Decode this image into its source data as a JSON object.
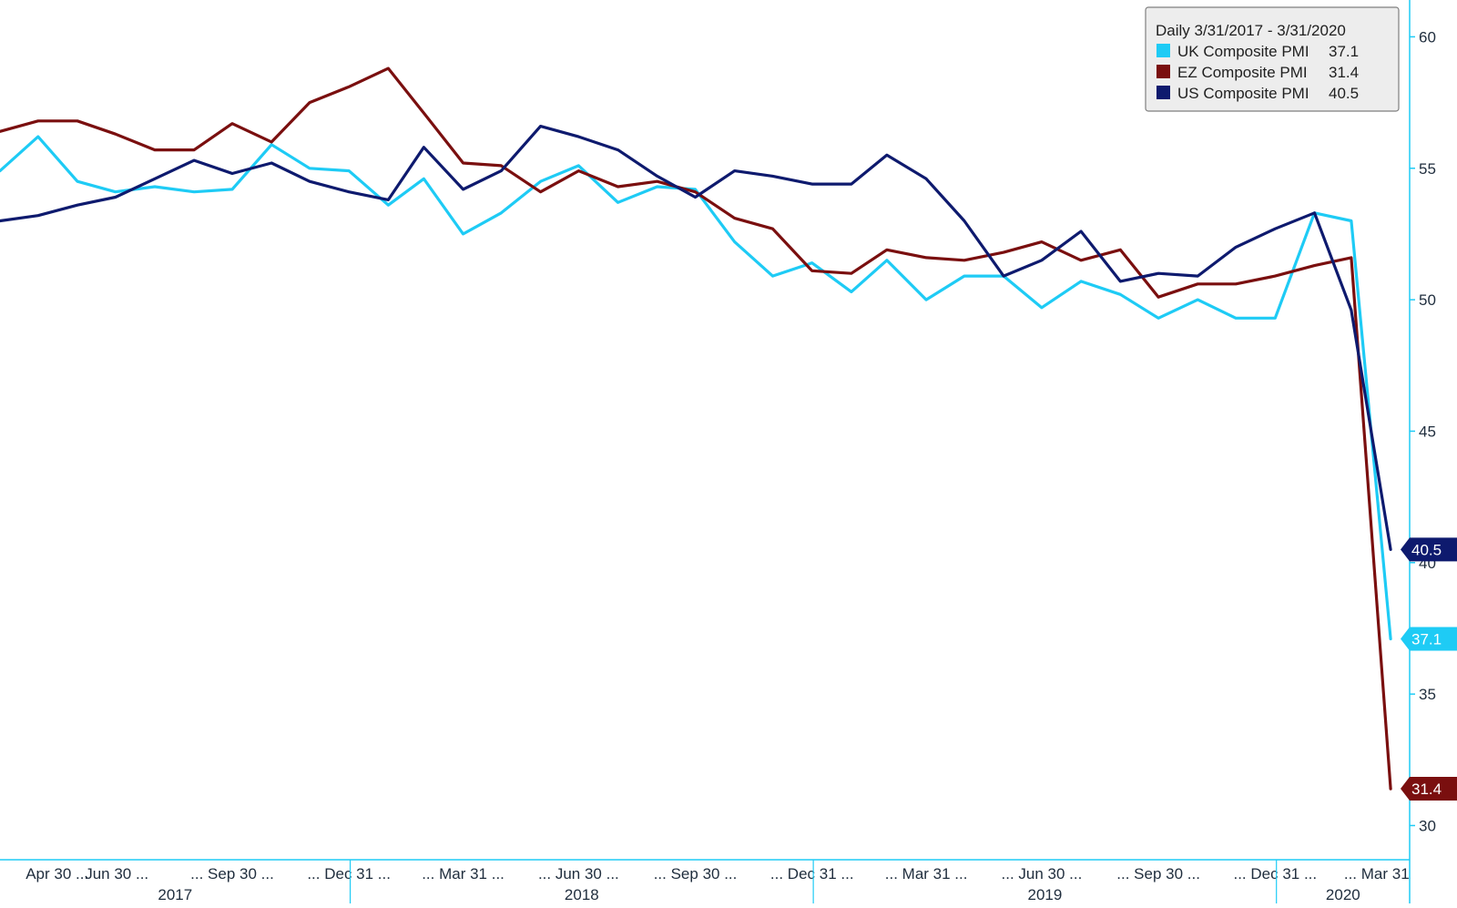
{
  "chart_data": {
    "type": "line",
    "legend": {
      "title": "Daily 3/31/2017 - 3/31/2020",
      "placement": "top-right",
      "items": [
        {
          "label": "UK Composite PMI",
          "value": "37.1",
          "color": "#1ecbf5"
        },
        {
          "label": "EZ Composite PMI",
          "value": "31.4",
          "color": "#7a0f0f"
        },
        {
          "label": "US Composite PMI",
          "value": "40.5",
          "color": "#0e1a6e"
        }
      ]
    },
    "y_axis": {
      "position": "right",
      "ylim": [
        28.7,
        61.4
      ],
      "ticks": [
        30,
        35,
        40,
        45,
        50,
        55,
        60
      ],
      "tick_labels": [
        "30",
        "35",
        "40",
        "45",
        "50",
        "55",
        "60"
      ]
    },
    "x_axis": {
      "xlim": [
        "2017-03-31",
        "2020-04-15"
      ],
      "tick_labels": [
        {
          "date": "2017-05-15",
          "text": "Apr 30 ..."
        },
        {
          "date": "2017-07-01",
          "text": "Jun 30 ..."
        },
        {
          "date": "2017-09-30",
          "text": "... Sep 30 ..."
        },
        {
          "date": "2017-12-31",
          "text": "... Dec 31 ..."
        },
        {
          "date": "2018-03-31",
          "text": "... Mar 31 ..."
        },
        {
          "date": "2018-06-30",
          "text": "... Jun 30 ..."
        },
        {
          "date": "2018-09-30",
          "text": "... Sep 30 ..."
        },
        {
          "date": "2018-12-31",
          "text": "... Dec 31 ..."
        },
        {
          "date": "2019-03-31",
          "text": "... Mar 31 ..."
        },
        {
          "date": "2019-06-30",
          "text": "... Jun 30 ..."
        },
        {
          "date": "2019-09-30",
          "text": "... Sep 30 ..."
        },
        {
          "date": "2019-12-31",
          "text": "... Dec 31 ..."
        },
        {
          "date": "2020-03-20",
          "text": "... Mar 31"
        }
      ],
      "years": [
        {
          "label": "2017",
          "start": "2017-03-31",
          "end": "2018-01-01"
        },
        {
          "label": "2018",
          "start": "2018-01-01",
          "end": "2019-01-01"
        },
        {
          "label": "2019",
          "start": "2019-01-01",
          "end": "2020-01-01"
        },
        {
          "label": "2020",
          "start": "2020-01-01",
          "end": "2020-04-15"
        }
      ]
    },
    "x": [
      "2017-03-31",
      "2017-04-30",
      "2017-05-31",
      "2017-06-30",
      "2017-07-31",
      "2017-08-31",
      "2017-09-30",
      "2017-10-31",
      "2017-11-30",
      "2017-12-31",
      "2018-01-31",
      "2018-02-28",
      "2018-03-31",
      "2018-04-30",
      "2018-05-31",
      "2018-06-30",
      "2018-07-31",
      "2018-08-31",
      "2018-09-30",
      "2018-10-31",
      "2018-11-30",
      "2018-12-31",
      "2019-01-31",
      "2019-02-28",
      "2019-03-31",
      "2019-04-30",
      "2019-05-31",
      "2019-06-30",
      "2019-07-31",
      "2019-08-31",
      "2019-09-30",
      "2019-10-31",
      "2019-11-30",
      "2019-12-31",
      "2020-01-31",
      "2020-02-29",
      "2020-03-31"
    ],
    "series": [
      {
        "name": "UK Composite PMI",
        "color": "#1ecbf5",
        "values": [
          54.9,
          56.2,
          54.5,
          54.1,
          54.3,
          54.1,
          54.2,
          55.9,
          55.0,
          54.9,
          53.6,
          54.6,
          52.5,
          53.3,
          54.5,
          55.1,
          53.7,
          54.3,
          54.2,
          52.2,
          50.9,
          51.4,
          50.3,
          51.5,
          50.0,
          50.9,
          50.9,
          49.7,
          50.7,
          50.2,
          49.3,
          50.0,
          49.3,
          49.3,
          53.3,
          53.0,
          37.1
        ]
      },
      {
        "name": "EZ Composite PMI",
        "color": "#7a0f0f",
        "values": [
          56.4,
          56.8,
          56.8,
          56.3,
          55.7,
          55.7,
          56.7,
          56.0,
          57.5,
          58.1,
          58.8,
          57.1,
          55.2,
          55.1,
          54.1,
          54.9,
          54.3,
          54.5,
          54.1,
          53.1,
          52.7,
          51.1,
          51.0,
          51.9,
          51.6,
          51.5,
          51.8,
          52.2,
          51.5,
          51.9,
          50.1,
          50.6,
          50.6,
          50.9,
          51.3,
          51.6,
          31.4
        ]
      },
      {
        "name": "US Composite PMI",
        "color": "#0e1a6e",
        "values": [
          53.0,
          53.2,
          53.6,
          53.9,
          54.6,
          55.3,
          54.8,
          55.2,
          54.5,
          54.1,
          53.8,
          55.8,
          54.2,
          54.9,
          56.6,
          56.2,
          55.7,
          54.7,
          53.9,
          54.9,
          54.7,
          54.4,
          54.4,
          55.5,
          54.6,
          53.0,
          50.9,
          51.5,
          52.6,
          50.7,
          51.0,
          50.9,
          52.0,
          52.7,
          53.3,
          49.6,
          40.5
        ]
      }
    ],
    "end_labels": [
      {
        "text": "40.5",
        "value": 40.5,
        "color": "#0e1a6e"
      },
      {
        "text": "37.1",
        "value": 37.1,
        "color": "#1ecbf5"
      },
      {
        "text": "31.4",
        "value": 31.4,
        "color": "#7a0f0f"
      }
    ]
  }
}
